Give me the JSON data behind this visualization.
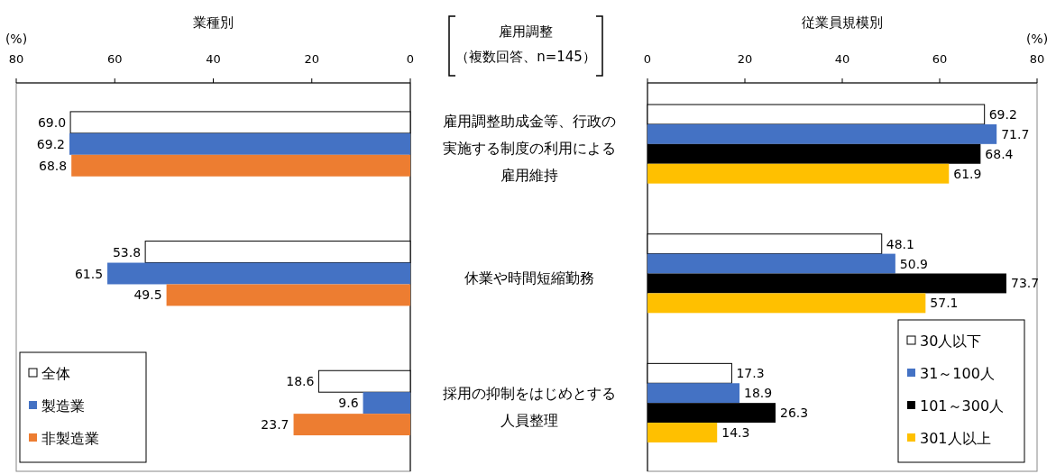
{
  "chart_data": [
    {
      "type": "bar",
      "orientation": "horizontal",
      "title": "業種別",
      "xlabel": "(%)",
      "annotations": [
        "雇用調整",
        "（複数回答、n=145）"
      ],
      "categories": [
        "雇用調整助成金等、行政の実施する制度の利用による雇用維持",
        "休業や時間短縮勤務",
        "採用の抑制をはじめとする人員整理"
      ],
      "series": [
        {
          "name": "全体",
          "color": "#ffffff",
          "values": [
            69.0,
            53.8,
            18.6
          ],
          "value_labels": [
            "69.0",
            "53.8",
            "18.6"
          ]
        },
        {
          "name": "製造業",
          "color": "#4472c4",
          "values": [
            69.2,
            61.5,
            9.6
          ],
          "value_labels": [
            "69.2",
            "61.5",
            "9.6"
          ]
        },
        {
          "name": "非製造業",
          "color": "#ed7d31",
          "values": [
            68.8,
            49.5,
            23.7
          ],
          "value_labels": [
            "68.8",
            "49.5",
            "23.7"
          ]
        }
      ],
      "xlim": [
        80,
        0
      ],
      "xticks": [
        80,
        60,
        40,
        20,
        0
      ],
      "legend": "bottom left"
    },
    {
      "type": "bar",
      "orientation": "horizontal",
      "title": "従業員規模別",
      "xlabel": "(%)",
      "categories": [
        "雇用調整助成金等、行政の実施する制度の利用による雇用維持",
        "休業や時間短縮勤務",
        "採用の抑制をはじめとする人員整理"
      ],
      "series": [
        {
          "name": "30人以下",
          "color": "#ffffff",
          "values": [
            69.2,
            48.1,
            17.3
          ],
          "value_labels": [
            "69.2",
            "48.1",
            "17.3"
          ]
        },
        {
          "name": "31～100人",
          "color": "#4472c4",
          "values": [
            71.7,
            50.9,
            18.9
          ],
          "value_labels": [
            "71.7",
            "50.9",
            "18.9"
          ]
        },
        {
          "name": "101～300人",
          "color": "#000000",
          "values": [
            68.4,
            73.7,
            26.3
          ],
          "value_labels": [
            "68.4",
            "73.7",
            "26.3"
          ]
        },
        {
          "name": "301人以上",
          "color": "#ffc000",
          "values": [
            61.9,
            57.1,
            14.3
          ],
          "value_labels": [
            "61.9",
            "57.1",
            "14.3"
          ]
        }
      ],
      "xlim": [
        0,
        80
      ],
      "xticks": [
        0,
        20,
        40,
        60,
        80
      ],
      "legend": "bottom right",
      "tick_labels": "x"
    }
  ]
}
